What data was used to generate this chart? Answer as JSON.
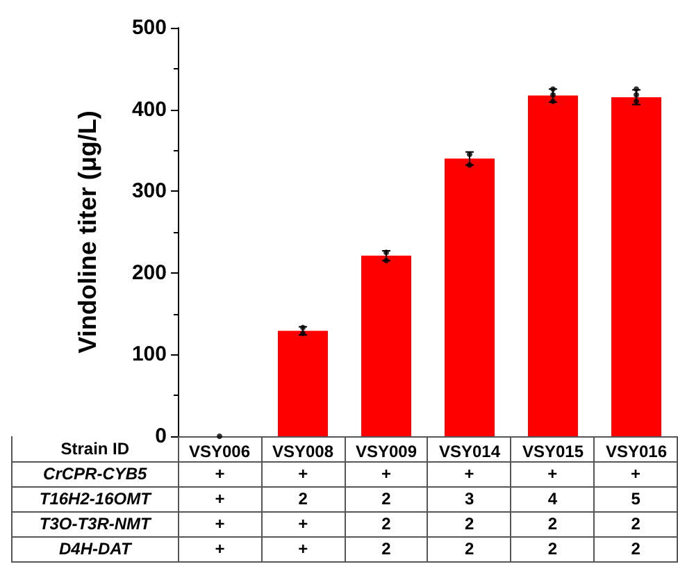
{
  "chart_data": {
    "type": "bar",
    "ylabel": "Vindoline titer (μg/L)",
    "xlabel": "Strain ID",
    "categories": [
      "VSY006",
      "VSY008",
      "VSY009",
      "VSY014",
      "VSY015",
      "VSY016"
    ],
    "series": [
      {
        "color": "#ff0000",
        "values": [
          0,
          129,
          221,
          340,
          417,
          415
        ],
        "errors": [
          null,
          5,
          6,
          8,
          8,
          9
        ]
      },
      {
        "type": "scatter",
        "color": "#000000",
        "x": [
          "VSY006",
          "VSY008",
          "VSY008",
          "VSY009",
          "VSY009",
          "VSY014",
          "VSY014",
          "VSY015",
          "VSY015",
          "VSY015",
          "VSY016",
          "VSY016",
          "VSY016"
        ],
        "values": [
          0,
          126,
          133,
          215,
          225,
          332,
          345,
          410,
          418,
          425,
          410,
          418,
          425
        ]
      }
    ],
    "ylim": [
      0,
      500
    ],
    "yticks": [
      0,
      100,
      200,
      300,
      400,
      500
    ],
    "grid": false,
    "marker": "circle",
    "annotations": [
      "CrCPR-CYB5",
      "+",
      "+",
      "+",
      "+",
      "+",
      "+",
      "T16H2-16OMT",
      "+",
      "2",
      "2",
      "3",
      "4",
      "5",
      "T3O-T3R-NMT",
      "+",
      "+",
      "2",
      "2",
      "2",
      "2",
      "D4H-DAT",
      "+",
      "+",
      "2",
      "2",
      "2",
      "2"
    ]
  }
}
